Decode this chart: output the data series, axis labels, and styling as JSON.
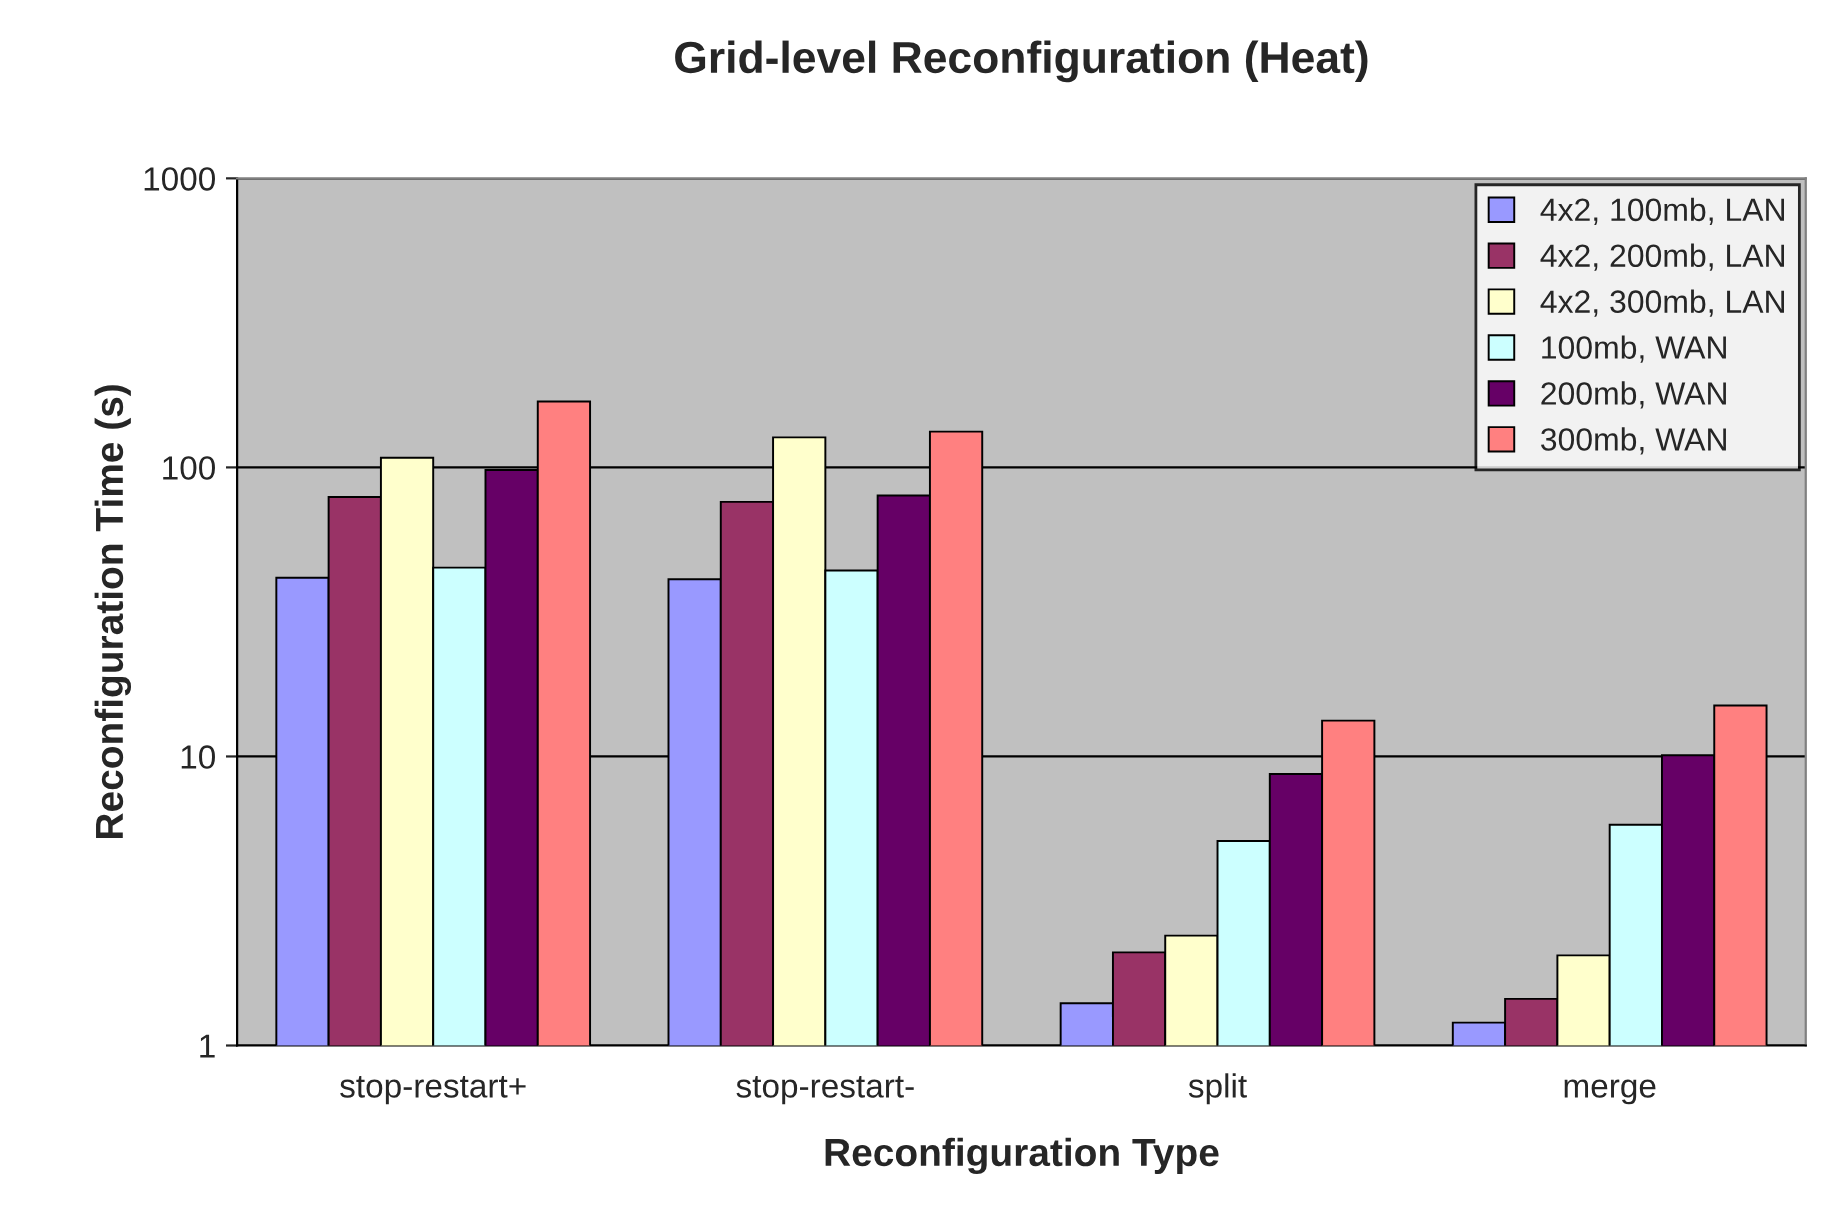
{
  "chart_data": {
    "type": "bar",
    "title": "Grid-level Reconfiguration (Heat)",
    "xlabel": "Reconfiguration Type",
    "ylabel": "Reconfiguration Time (s)",
    "categories": [
      "stop-restart+",
      "stop-restart-",
      "split",
      "merge"
    ],
    "series": [
      {
        "name": "4x2, 100mb, LAN",
        "color": "#9999ff",
        "values": [
          41.5,
          41,
          1.4,
          1.2
        ]
      },
      {
        "name": "4x2, 200mb, LAN",
        "color": "#993366",
        "values": [
          79,
          76,
          2.1,
          1.45
        ]
      },
      {
        "name": "4x2, 300mb, LAN",
        "color": "#ffffcc",
        "values": [
          108,
          127,
          2.4,
          2.05
        ]
      },
      {
        "name": "100mb, WAN",
        "color": "#ccffff",
        "values": [
          45,
          44,
          5.1,
          5.8
        ]
      },
      {
        "name": "200mb, WAN",
        "color": "#660066",
        "values": [
          98,
          80,
          8.7,
          10.1
        ]
      },
      {
        "name": "300mb, WAN",
        "color": "#ff8080",
        "values": [
          169,
          133,
          13.3,
          15
        ]
      }
    ],
    "log": "y",
    "ylim": [
      1,
      1000
    ],
    "yticks": [
      1,
      10,
      100,
      1000
    ],
    "grid": "y",
    "legend": "top right"
  }
}
